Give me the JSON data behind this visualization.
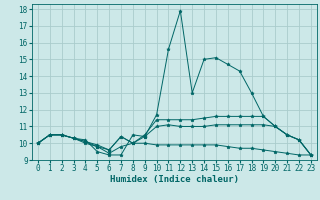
{
  "xlabel": "Humidex (Indice chaleur)",
  "bg_color": "#cce8e8",
  "grid_color": "#aacccc",
  "line_color": "#006666",
  "xlim": [
    -0.5,
    23.5
  ],
  "ylim": [
    9.0,
    18.3
  ],
  "yticks": [
    9,
    10,
    11,
    12,
    13,
    14,
    15,
    16,
    17,
    18
  ],
  "xticks": [
    0,
    1,
    2,
    3,
    4,
    5,
    6,
    7,
    8,
    9,
    10,
    11,
    12,
    13,
    14,
    15,
    16,
    17,
    18,
    19,
    20,
    21,
    22,
    23
  ],
  "lines": [
    [
      10.0,
      10.5,
      10.5,
      10.3,
      10.2,
      9.5,
      9.3,
      9.3,
      10.5,
      10.4,
      11.7,
      15.6,
      17.9,
      13.0,
      15.0,
      15.1,
      14.7,
      14.3,
      13.0,
      11.6,
      11.0,
      10.5,
      10.2,
      9.3
    ],
    [
      10.0,
      10.5,
      10.5,
      10.3,
      10.1,
      9.8,
      9.6,
      10.4,
      10.0,
      10.5,
      11.4,
      11.4,
      11.4,
      11.4,
      11.5,
      11.6,
      11.6,
      11.6,
      11.6,
      11.6,
      11.0,
      10.5,
      10.2,
      9.3
    ],
    [
      10.0,
      10.5,
      10.5,
      10.3,
      10.1,
      9.9,
      9.6,
      10.4,
      10.0,
      10.4,
      11.0,
      11.1,
      11.0,
      11.0,
      11.0,
      11.1,
      11.1,
      11.1,
      11.1,
      11.1,
      11.0,
      10.5,
      10.2,
      9.3
    ],
    [
      10.0,
      10.5,
      10.5,
      10.3,
      10.0,
      9.8,
      9.4,
      9.8,
      10.0,
      10.0,
      9.9,
      9.9,
      9.9,
      9.9,
      9.9,
      9.9,
      9.8,
      9.7,
      9.7,
      9.6,
      9.5,
      9.4,
      9.3,
      9.3
    ]
  ]
}
